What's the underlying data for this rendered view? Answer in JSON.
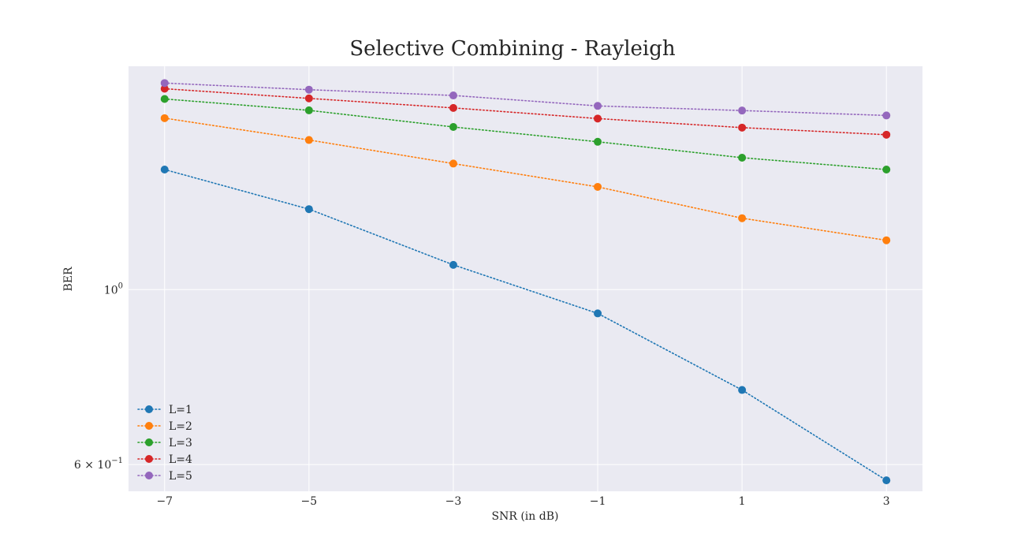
{
  "chart_data": {
    "type": "line",
    "title": "Selective Combining - Rayleigh",
    "xlabel": "SNR (in dB)",
    "ylabel": "BER",
    "x": [
      -7,
      -5,
      -3,
      -1,
      1,
      3
    ],
    "x_tick_values": [
      -7,
      -5,
      -3,
      -1,
      1,
      3
    ],
    "x_tick_labels": [
      "−7",
      "−5",
      "−3",
      "−1",
      "1",
      "3"
    ],
    "y_scale": "log",
    "xlim": [
      -7.5,
      3.5
    ],
    "ylim": [
      0.555,
      1.92
    ],
    "y_ticks": [
      {
        "value": 1.0,
        "base": "10",
        "exp": "0"
      },
      {
        "value": 0.6,
        "base": "6 × 10",
        "exp": "−1"
      }
    ],
    "grid": true,
    "legend_position": "lower-left",
    "marker": "circle",
    "line_style": "dotted",
    "series": [
      {
        "name": "L=1",
        "color": "#1f77b4",
        "values": [
          1.42,
          1.265,
          1.075,
          0.933,
          0.746,
          0.573
        ]
      },
      {
        "name": "L=2",
        "color": "#ff7f0e",
        "values": [
          1.65,
          1.548,
          1.445,
          1.35,
          1.232,
          1.155
        ]
      },
      {
        "name": "L=3",
        "color": "#2ca02c",
        "values": [
          1.745,
          1.688,
          1.608,
          1.54,
          1.47,
          1.42
        ]
      },
      {
        "name": "L=4",
        "color": "#d62728",
        "values": [
          1.798,
          1.748,
          1.7,
          1.648,
          1.605,
          1.572
        ]
      },
      {
        "name": "L=5",
        "color": "#9467bd",
        "values": [
          1.828,
          1.793,
          1.763,
          1.71,
          1.687,
          1.663
        ]
      }
    ]
  }
}
